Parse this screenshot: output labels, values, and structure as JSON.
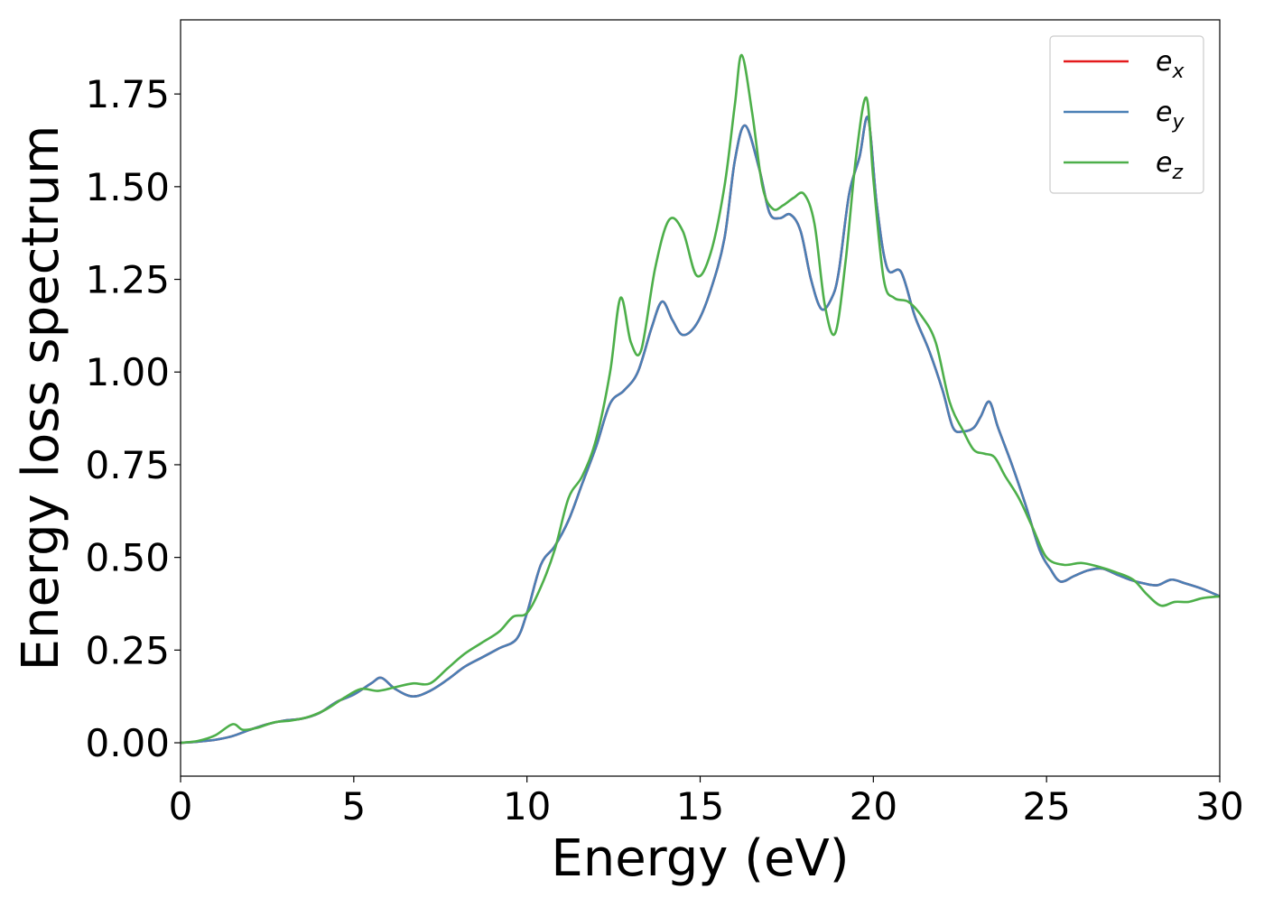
{
  "chart_data": {
    "type": "line",
    "xlabel": "Energy (eV)",
    "ylabel": "Energy loss spectrum",
    "xlim": [
      0,
      30
    ],
    "ylim": [
      -0.09,
      1.95
    ],
    "xticks": [
      0,
      5,
      10,
      15,
      20,
      25,
      30
    ],
    "xtick_labels": [
      "0",
      "5",
      "10",
      "15",
      "20",
      "25",
      "30"
    ],
    "yticks": [
      0,
      0.25,
      0.5,
      0.75,
      1.0,
      1.25,
      1.5,
      1.75
    ],
    "ytick_labels": [
      "0.00",
      "0.25",
      "0.50",
      "0.75",
      "1.00",
      "1.25",
      "1.50",
      "1.75"
    ],
    "grid": false,
    "legend_position": "top-right",
    "series": [
      {
        "name": "e_x",
        "legend_base": "e",
        "legend_sub": "x",
        "color": "#e41a1c",
        "x": [
          0,
          0.5,
          1.0,
          1.5,
          2.0,
          2.5,
          3.0,
          3.5,
          4.0,
          4.5,
          5.0,
          5.5,
          5.8,
          6.2,
          6.7,
          7.2,
          7.7,
          8.2,
          8.7,
          9.2,
          9.7,
          10.0,
          10.4,
          10.8,
          11.2,
          11.6,
          12.0,
          12.4,
          12.8,
          13.2,
          13.6,
          13.9,
          14.2,
          14.5,
          14.9,
          15.3,
          15.7,
          16.0,
          16.3,
          16.7,
          17.0,
          17.3,
          17.6,
          17.9,
          18.2,
          18.5,
          18.8,
          19.0,
          19.3,
          19.6,
          19.85,
          20.1,
          20.4,
          20.8,
          21.2,
          21.6,
          22.0,
          22.3,
          22.6,
          22.9,
          23.1,
          23.35,
          23.6,
          24.0,
          24.4,
          24.8,
          25.1,
          25.4,
          25.8,
          26.2,
          26.6,
          27.0,
          27.4,
          27.8,
          28.2,
          28.6,
          29.0,
          29.5,
          30.0
        ],
        "values": [
          0.0,
          0.003,
          0.008,
          0.018,
          0.035,
          0.05,
          0.06,
          0.065,
          0.08,
          0.11,
          0.13,
          0.16,
          0.175,
          0.145,
          0.125,
          0.14,
          0.17,
          0.205,
          0.23,
          0.255,
          0.28,
          0.35,
          0.48,
          0.53,
          0.6,
          0.7,
          0.8,
          0.915,
          0.95,
          1.0,
          1.12,
          1.19,
          1.14,
          1.1,
          1.13,
          1.22,
          1.36,
          1.57,
          1.665,
          1.55,
          1.43,
          1.415,
          1.425,
          1.38,
          1.25,
          1.17,
          1.2,
          1.27,
          1.48,
          1.58,
          1.685,
          1.45,
          1.28,
          1.27,
          1.15,
          1.06,
          0.95,
          0.85,
          0.84,
          0.85,
          0.88,
          0.92,
          0.85,
          0.75,
          0.64,
          0.52,
          0.47,
          0.435,
          0.45,
          0.465,
          0.47,
          0.455,
          0.44,
          0.43,
          0.425,
          0.44,
          0.43,
          0.415,
          0.395
        ]
      },
      {
        "name": "e_y",
        "legend_base": "e",
        "legend_sub": "y",
        "color": "#4a7fb5",
        "x": [
          0,
          0.5,
          1.0,
          1.5,
          2.0,
          2.5,
          3.0,
          3.5,
          4.0,
          4.5,
          5.0,
          5.5,
          5.8,
          6.2,
          6.7,
          7.2,
          7.7,
          8.2,
          8.7,
          9.2,
          9.7,
          10.0,
          10.4,
          10.8,
          11.2,
          11.6,
          12.0,
          12.4,
          12.8,
          13.2,
          13.6,
          13.9,
          14.2,
          14.5,
          14.9,
          15.3,
          15.7,
          16.0,
          16.3,
          16.7,
          17.0,
          17.3,
          17.6,
          17.9,
          18.2,
          18.5,
          18.8,
          19.0,
          19.3,
          19.6,
          19.85,
          20.1,
          20.4,
          20.8,
          21.2,
          21.6,
          22.0,
          22.3,
          22.6,
          22.9,
          23.1,
          23.35,
          23.6,
          24.0,
          24.4,
          24.8,
          25.1,
          25.4,
          25.8,
          26.2,
          26.6,
          27.0,
          27.4,
          27.8,
          28.2,
          28.6,
          29.0,
          29.5,
          30.0
        ],
        "values": [
          0.0,
          0.003,
          0.008,
          0.018,
          0.035,
          0.05,
          0.06,
          0.065,
          0.08,
          0.11,
          0.13,
          0.16,
          0.175,
          0.145,
          0.125,
          0.14,
          0.17,
          0.205,
          0.23,
          0.255,
          0.28,
          0.35,
          0.48,
          0.53,
          0.6,
          0.7,
          0.8,
          0.915,
          0.95,
          1.0,
          1.12,
          1.19,
          1.14,
          1.1,
          1.13,
          1.22,
          1.36,
          1.57,
          1.665,
          1.55,
          1.43,
          1.415,
          1.425,
          1.38,
          1.25,
          1.17,
          1.2,
          1.27,
          1.48,
          1.58,
          1.685,
          1.45,
          1.28,
          1.27,
          1.15,
          1.06,
          0.95,
          0.85,
          0.84,
          0.85,
          0.88,
          0.92,
          0.85,
          0.75,
          0.64,
          0.52,
          0.47,
          0.435,
          0.45,
          0.465,
          0.47,
          0.455,
          0.44,
          0.43,
          0.425,
          0.44,
          0.43,
          0.415,
          0.395
        ]
      },
      {
        "name": "e_z",
        "legend_base": "e",
        "legend_sub": "z",
        "color": "#4daf4a",
        "x": [
          0,
          0.5,
          1.0,
          1.5,
          1.8,
          2.2,
          2.7,
          3.2,
          3.7,
          4.2,
          4.7,
          5.2,
          5.7,
          6.2,
          6.7,
          7.2,
          7.7,
          8.2,
          8.7,
          9.2,
          9.6,
          10.0,
          10.4,
          10.8,
          11.2,
          11.6,
          12.0,
          12.4,
          12.7,
          13.0,
          13.3,
          13.7,
          14.1,
          14.5,
          14.9,
          15.3,
          15.7,
          16.0,
          16.2,
          16.5,
          16.8,
          17.1,
          17.4,
          17.7,
          18.0,
          18.3,
          18.6,
          18.9,
          19.2,
          19.5,
          19.8,
          20.0,
          20.3,
          20.6,
          21.0,
          21.4,
          21.8,
          22.2,
          22.6,
          22.9,
          23.2,
          23.5,
          23.8,
          24.2,
          24.6,
          25.0,
          25.5,
          26.0,
          26.5,
          27.0,
          27.5,
          27.9,
          28.3,
          28.7,
          29.1,
          29.5,
          30.0
        ],
        "values": [
          0.0,
          0.005,
          0.02,
          0.05,
          0.035,
          0.04,
          0.055,
          0.06,
          0.07,
          0.09,
          0.12,
          0.145,
          0.14,
          0.15,
          0.16,
          0.16,
          0.2,
          0.24,
          0.27,
          0.3,
          0.34,
          0.35,
          0.42,
          0.52,
          0.66,
          0.72,
          0.82,
          1.0,
          1.2,
          1.08,
          1.06,
          1.28,
          1.41,
          1.38,
          1.26,
          1.32,
          1.5,
          1.72,
          1.855,
          1.7,
          1.5,
          1.44,
          1.45,
          1.47,
          1.48,
          1.4,
          1.18,
          1.105,
          1.3,
          1.58,
          1.74,
          1.52,
          1.25,
          1.2,
          1.19,
          1.15,
          1.08,
          0.92,
          0.84,
          0.79,
          0.78,
          0.77,
          0.72,
          0.66,
          0.58,
          0.5,
          0.48,
          0.485,
          0.475,
          0.46,
          0.44,
          0.4,
          0.37,
          0.38,
          0.38,
          0.39,
          0.395
        ]
      }
    ]
  }
}
